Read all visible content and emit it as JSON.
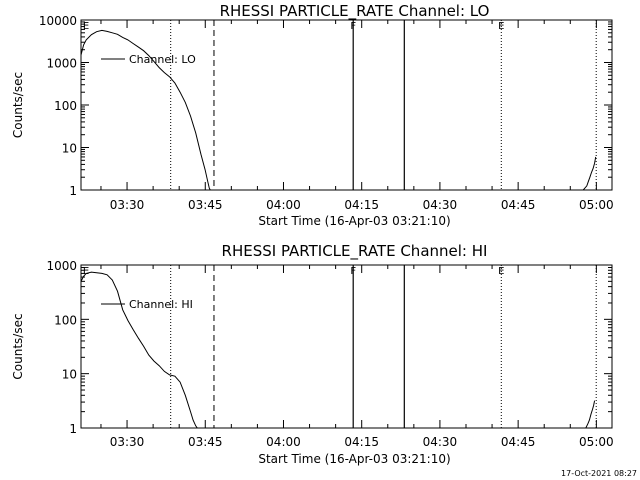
{
  "chart_data": [
    {
      "type": "line",
      "title": "RHESSI PARTICLE_RATE Channel: LO",
      "xlabel": "Start Time (16-Apr-03 03:21:10)",
      "ylabel": "Counts/sec",
      "x_unit": "minutes after 03:21:10",
      "xlim": [
        0,
        101.83
      ],
      "ylim": [
        1,
        10000
      ],
      "yscale": "log",
      "x_ticks": [
        {
          "label": "03:30",
          "value": 8.83
        },
        {
          "label": "03:45",
          "value": 23.83
        },
        {
          "label": "04:00",
          "value": 38.83
        },
        {
          "label": "04:15",
          "value": 53.83
        },
        {
          "label": "04:30",
          "value": 68.83
        },
        {
          "label": "04:45",
          "value": 83.83
        },
        {
          "label": "05:00",
          "value": 98.83
        }
      ],
      "y_ticks": [
        {
          "label": "1",
          "value": 1
        },
        {
          "label": "10",
          "value": 10
        },
        {
          "label": "100",
          "value": 100
        },
        {
          "label": "1000",
          "value": 1000
        },
        {
          "label": "10000",
          "value": 10000
        }
      ],
      "legend": {
        "label": "Channel: LO",
        "position": "top-left"
      },
      "series": [
        {
          "name": "Channel: LO",
          "x": [
            0,
            0.5,
            1,
            2,
            3,
            4,
            5,
            6,
            7,
            8,
            9,
            10,
            11,
            12,
            13,
            14,
            15,
            16,
            17,
            18,
            19,
            20,
            21,
            22,
            23,
            23.8,
            24.3,
            24.6,
            24.8
          ],
          "y": [
            1500,
            2600,
            3400,
            4500,
            5300,
            5700,
            5400,
            5000,
            4600,
            3900,
            3400,
            2800,
            2300,
            1900,
            1450,
            1050,
            760,
            580,
            460,
            330,
            200,
            115,
            55,
            22,
            7,
            3,
            1.6,
            1.1,
            1
          ],
          "style": "solid"
        },
        {
          "name": "tail",
          "x": [
            96.3,
            97,
            97.3,
            97.6,
            97.9,
            98.2,
            98.5,
            98.7
          ],
          "y": [
            1,
            1.25,
            1.6,
            2.0,
            2.6,
            3.2,
            4.3,
            6
          ],
          "style": "solid"
        }
      ],
      "vlines": [
        {
          "x": 17.2,
          "style": "dotted"
        },
        {
          "x": 25.5,
          "style": "dashed"
        },
        {
          "x": 52.2,
          "style": "solid",
          "label": "F"
        },
        {
          "x": 62.0,
          "style": "solid"
        },
        {
          "x": 80.6,
          "style": "dotted",
          "label": "E"
        },
        {
          "x": 98.8,
          "style": "dotted"
        }
      ],
      "corner_label": "E"
    },
    {
      "type": "line",
      "title": "RHESSI PARTICLE_RATE Channel: HI",
      "xlabel": "Start Time (16-Apr-03 03:21:10)",
      "ylabel": "Counts/sec",
      "x_unit": "minutes after 03:21:10",
      "xlim": [
        0,
        101.83
      ],
      "ylim": [
        1,
        1000
      ],
      "yscale": "log",
      "x_ticks": [
        {
          "label": "03:30",
          "value": 8.83
        },
        {
          "label": "03:45",
          "value": 23.83
        },
        {
          "label": "04:00",
          "value": 38.83
        },
        {
          "label": "04:15",
          "value": 53.83
        },
        {
          "label": "04:30",
          "value": 68.83
        },
        {
          "label": "04:45",
          "value": 83.83
        },
        {
          "label": "05:00",
          "value": 98.83
        }
      ],
      "y_ticks": [
        {
          "label": "1",
          "value": 1
        },
        {
          "label": "10",
          "value": 10
        },
        {
          "label": "100",
          "value": 100
        },
        {
          "label": "1000",
          "value": 1000
        }
      ],
      "legend": {
        "label": "Channel: HI",
        "position": "top-left"
      },
      "series": [
        {
          "name": "Channel: HI",
          "x": [
            0,
            0.5,
            1,
            2,
            3,
            4,
            5,
            6,
            7,
            8,
            9,
            10,
            11,
            12,
            13,
            14,
            15,
            16,
            17,
            18,
            19,
            20,
            21,
            21.5,
            22,
            22.3
          ],
          "y": [
            500,
            620,
            700,
            740,
            720,
            700,
            660,
            530,
            330,
            150,
            95,
            65,
            45,
            32,
            22,
            17,
            14,
            11,
            9.5,
            9,
            7,
            4,
            2,
            1.4,
            1.1,
            1
          ],
          "style": "solid"
        },
        {
          "name": "tail",
          "x": [
            96.8,
            97.2,
            97.5,
            97.8,
            98.1,
            98.3,
            98.5
          ],
          "y": [
            1,
            1.2,
            1.4,
            1.8,
            2.2,
            2.6,
            3.2
          ],
          "style": "solid"
        }
      ],
      "vlines": [
        {
          "x": 17.2,
          "style": "dotted"
        },
        {
          "x": 25.5,
          "style": "dashed"
        },
        {
          "x": 52.2,
          "style": "solid",
          "label": "F"
        },
        {
          "x": 62.0,
          "style": "solid"
        },
        {
          "x": 80.6,
          "style": "dotted",
          "label": "E"
        },
        {
          "x": 98.8,
          "style": "dotted"
        }
      ],
      "corner_label": "E"
    }
  ],
  "footer": {
    "timestamp": "17-Oct-2021 08:27"
  }
}
